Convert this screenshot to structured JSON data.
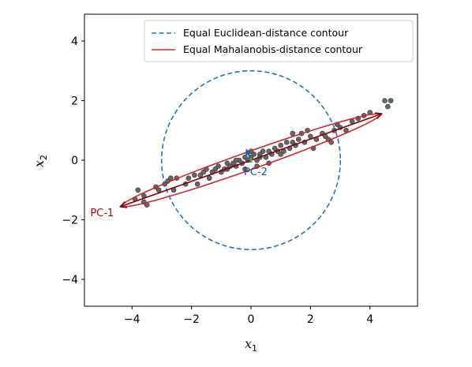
{
  "chart_data": {
    "type": "scatter",
    "title": "",
    "xlabel_base": "x",
    "xlabel_sub": "1",
    "ylabel_base": "x",
    "ylabel_sub": "2",
    "xlim": [
      -5.6,
      5.6
    ],
    "ylim": [
      -4.9,
      4.9
    ],
    "xticks": [
      -4,
      -2,
      0,
      2,
      4
    ],
    "yticks": [
      -4,
      -2,
      0,
      2,
      4
    ],
    "xtick_labels": [
      "−4",
      "−2",
      "0",
      "2",
      "4"
    ],
    "ytick_labels": [
      "−4",
      "−2",
      "0",
      "2",
      "4"
    ],
    "grid": false,
    "legend_position": "top-right",
    "legend": [
      {
        "label": "Equal Euclidean-distance contour",
        "style": "dashed",
        "color": "#1f77b4"
      },
      {
        "label": "Equal Mahalanobis-distance contour",
        "style": "solid",
        "color": "#d62728"
      }
    ],
    "euclidean_circle": {
      "center": [
        0,
        0
      ],
      "radius": 3.0,
      "color": "#1f77b4"
    },
    "mahalanobis_ellipse": {
      "center": [
        0,
        0
      ],
      "semi_major": 4.6,
      "semi_minor": 0.3,
      "angle_deg": 19.5,
      "color": "#d62728"
    },
    "pc_arrows": [
      {
        "name": "PC-1",
        "from": [
          4.4,
          1.56
        ],
        "to": [
          -4.4,
          -1.56
        ],
        "color": "#8b0000",
        "label": "PC-1",
        "label_color": "#c00000"
      },
      {
        "name": "PC-2",
        "from": [
          0,
          0
        ],
        "to": [
          -0.15,
          0.35
        ],
        "color": "#1f5fb4",
        "label": "PC-2",
        "label_color": "#1f4e9b"
      }
    ],
    "points_color": "#666666",
    "points": [
      [
        -3.8,
        -1.0
      ],
      [
        -3.6,
        -1.4
      ],
      [
        -3.5,
        -1.5
      ],
      [
        -3.6,
        -1.2
      ],
      [
        -3.2,
        -0.9
      ],
      [
        -3.1,
        -1.0
      ],
      [
        -2.9,
        -0.8
      ],
      [
        -2.8,
        -0.7
      ],
      [
        -2.7,
        -0.6
      ],
      [
        -2.6,
        -1.0
      ],
      [
        -2.2,
        -0.8
      ],
      [
        -2.1,
        -0.6
      ],
      [
        -1.9,
        -0.5
      ],
      [
        -1.8,
        -0.8
      ],
      [
        -1.7,
        -0.5
      ],
      [
        -1.6,
        -0.4
      ],
      [
        -1.5,
        -0.3
      ],
      [
        -1.4,
        -0.6
      ],
      [
        -1.3,
        -0.4
      ],
      [
        -1.2,
        -0.3
      ],
      [
        -1.1,
        -0.2
      ],
      [
        -1.0,
        -0.4
      ],
      [
        -0.9,
        -0.3
      ],
      [
        -0.8,
        -0.1
      ],
      [
        -0.8,
        -0.3
      ],
      [
        -0.7,
        -0.2
      ],
      [
        -0.6,
        -0.1
      ],
      [
        -0.5,
        -0.2
      ],
      [
        -0.4,
        0.0
      ],
      [
        -0.3,
        -0.1
      ],
      [
        -0.2,
        0.1
      ],
      [
        -0.1,
        0.0
      ],
      [
        0.0,
        0.1
      ],
      [
        0.1,
        0.2
      ],
      [
        0.2,
        0.0
      ],
      [
        0.3,
        0.2
      ],
      [
        0.3,
        0.1
      ],
      [
        0.4,
        0.3
      ],
      [
        0.5,
        0.1
      ],
      [
        0.6,
        0.3
      ],
      [
        0.7,
        0.2
      ],
      [
        0.8,
        0.4
      ],
      [
        0.9,
        0.3
      ],
      [
        1.0,
        0.5
      ],
      [
        1.1,
        0.3
      ],
      [
        1.2,
        0.6
      ],
      [
        1.3,
        0.4
      ],
      [
        1.4,
        0.6
      ],
      [
        1.5,
        0.5
      ],
      [
        1.6,
        0.7
      ],
      [
        1.8,
        0.6
      ],
      [
        2.0,
        0.8
      ],
      [
        2.2,
        0.7
      ],
      [
        2.4,
        0.9
      ],
      [
        2.5,
        0.8
      ],
      [
        2.6,
        0.7
      ],
      [
        2.8,
        1.0
      ],
      [
        2.9,
        1.2
      ],
      [
        3.0,
        1.1
      ],
      [
        3.2,
        1.0
      ],
      [
        3.4,
        1.3
      ],
      [
        3.6,
        1.4
      ],
      [
        3.8,
        1.5
      ],
      [
        4.0,
        1.6
      ],
      [
        4.6,
        1.8
      ],
      [
        4.7,
        2.0
      ],
      [
        4.5,
        2.0
      ],
      [
        -0.2,
        -0.3
      ],
      [
        0.2,
        -0.2
      ],
      [
        0.6,
        -0.1
      ],
      [
        1.7,
        0.9
      ],
      [
        1.9,
        1.0
      ],
      [
        0.0,
        0.3
      ],
      [
        -0.5,
        0.0
      ],
      [
        1.0,
        0.2
      ],
      [
        2.1,
        0.4
      ],
      [
        -2.5,
        -0.6
      ],
      [
        -3.9,
        -1.3
      ],
      [
        2.7,
        0.6
      ],
      [
        1.4,
        0.9
      ]
    ]
  }
}
